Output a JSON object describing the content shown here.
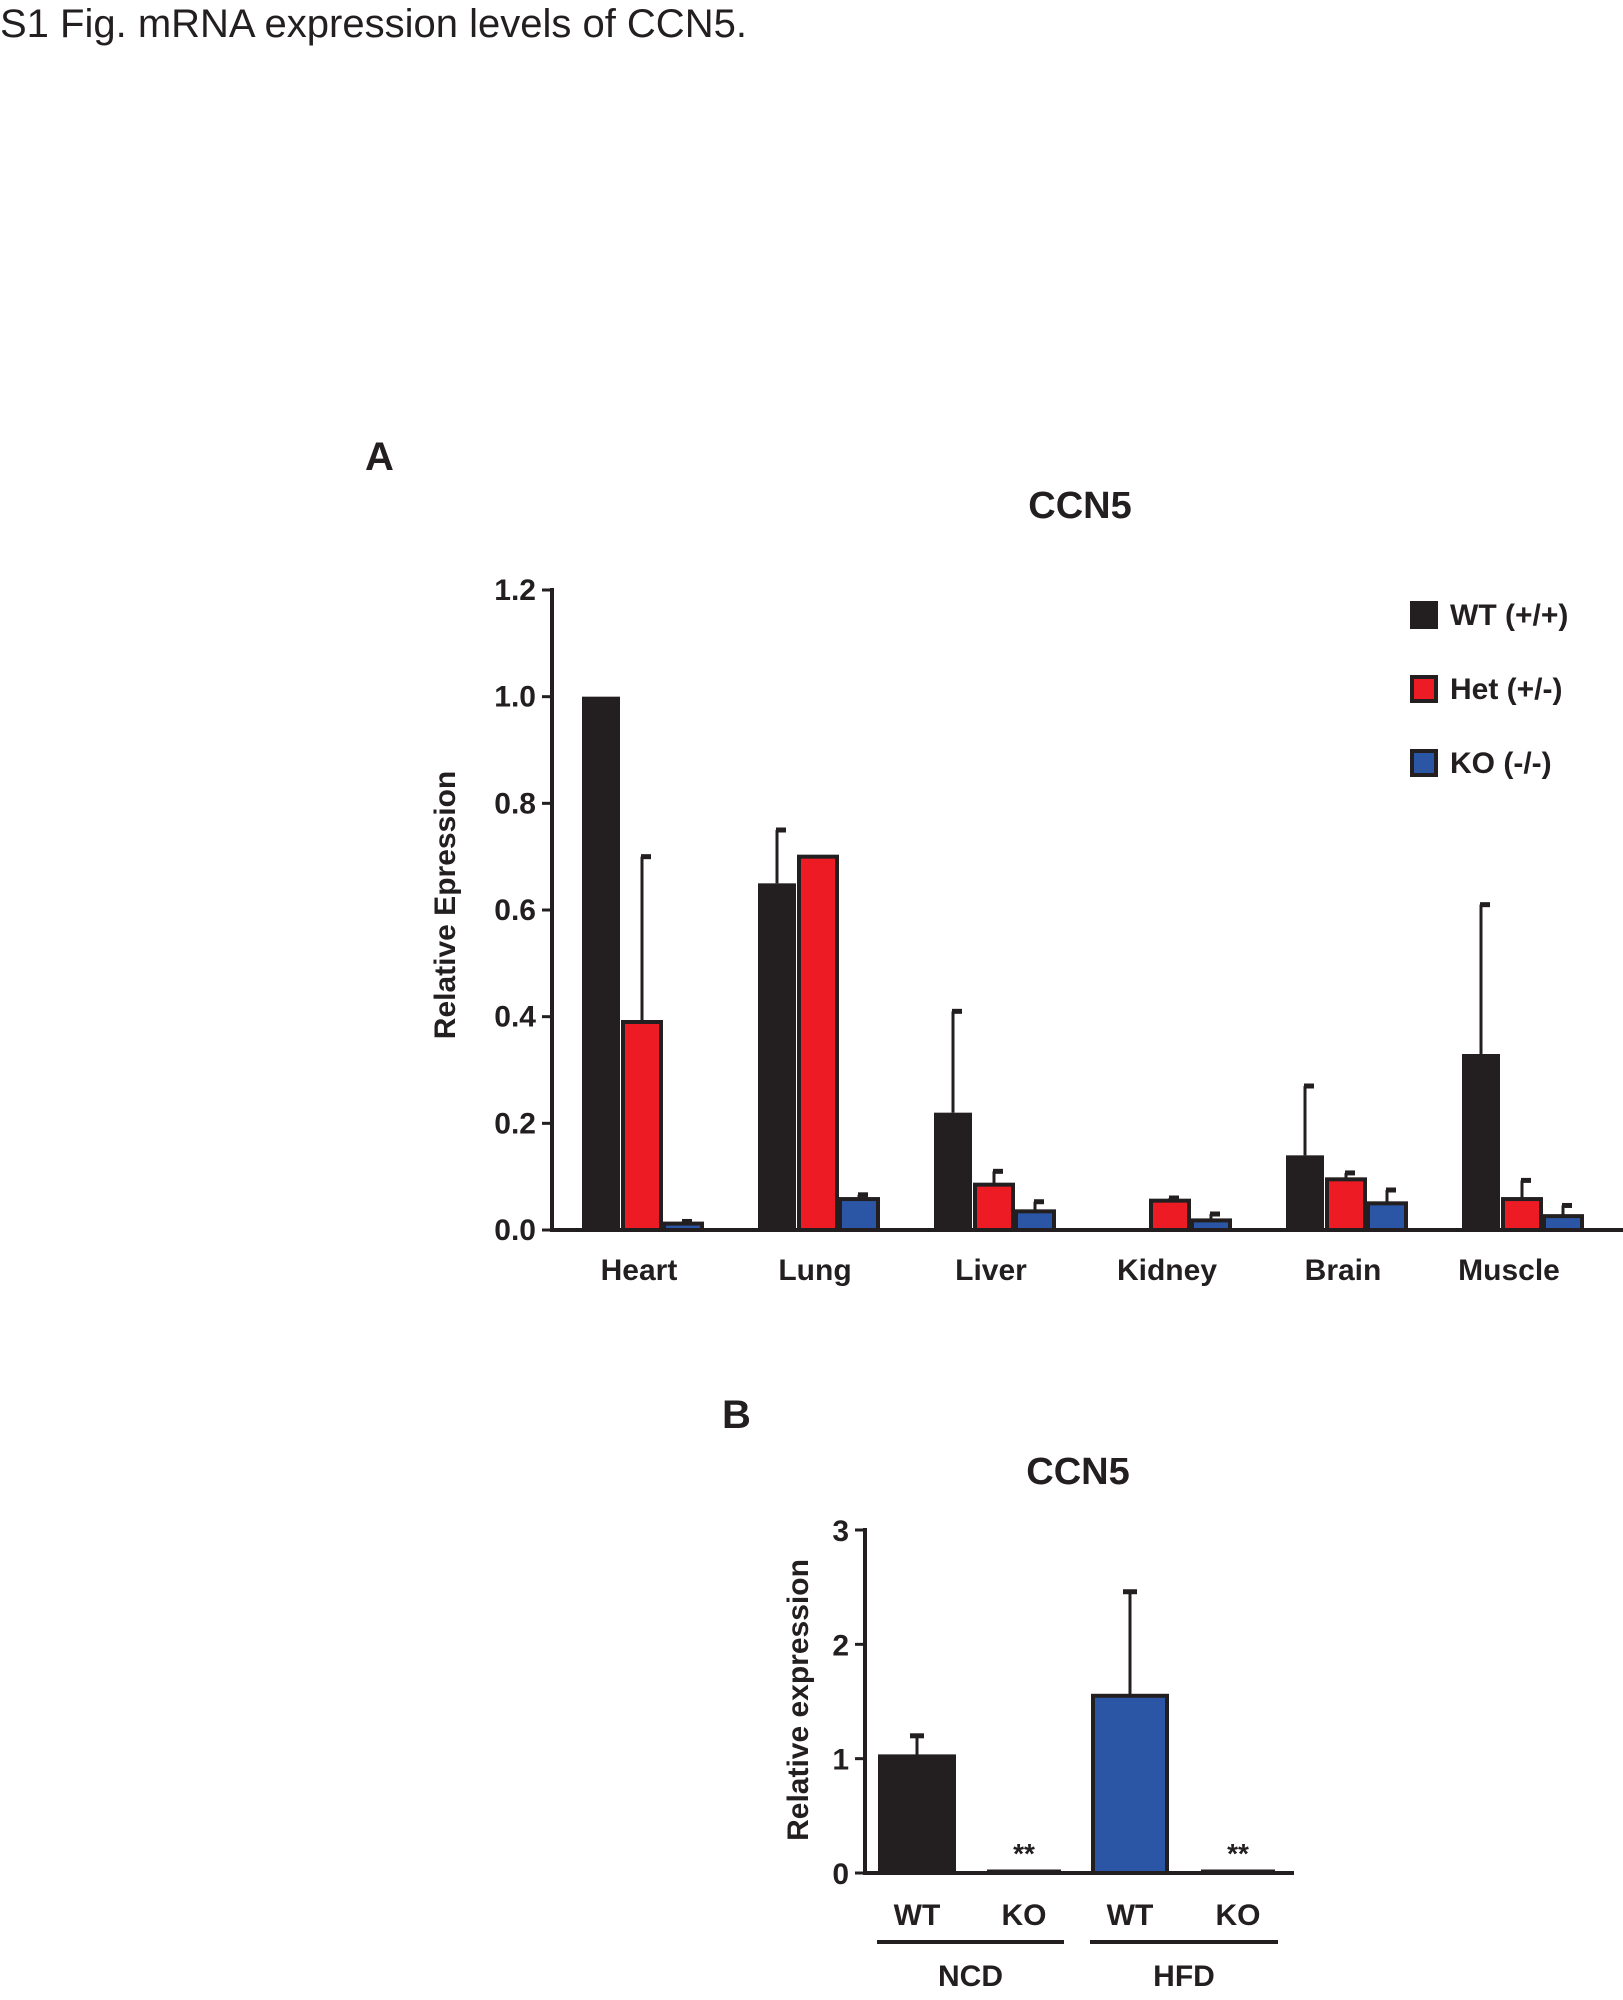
{
  "caption": "S1 Fig. mRNA expression levels of CCN5.",
  "colors": {
    "wt": "#231f20",
    "het": "#ed1c24",
    "ko": "#2a56a5",
    "axis": "#231f20"
  },
  "chart_data": [
    {
      "panel": "A",
      "type": "bar",
      "title": "CCN5",
      "xlabel": "",
      "ylabel": "Relative Epression",
      "ylim": [
        0,
        1.2
      ],
      "yticks": [
        "0.0",
        "0.2",
        "0.4",
        "0.6",
        "0.8",
        "1.0",
        "1.2"
      ],
      "legend_position": "top-right",
      "categories": [
        "Heart",
        "Lung",
        "Liver",
        "Kidney",
        "Brain",
        "Muscle"
      ],
      "series": [
        {
          "name": "WT (+/+)",
          "color_key": "wt",
          "values": [
            1.0,
            0.65,
            0.22,
            0.0,
            0.14,
            0.33
          ],
          "errors": [
            0.0,
            0.1,
            0.19,
            0.0,
            0.13,
            0.28
          ]
        },
        {
          "name": "Het (+/-)",
          "color_key": "het",
          "values": [
            0.39,
            0.7,
            0.085,
            0.055,
            0.095,
            0.058
          ],
          "errors": [
            0.31,
            0.0,
            0.025,
            0.005,
            0.012,
            0.035
          ]
        },
        {
          "name": "KO (-/-)",
          "color_key": "ko",
          "values": [
            0.012,
            0.058,
            0.035,
            0.018,
            0.05,
            0.026
          ],
          "errors": [
            0.004,
            0.008,
            0.018,
            0.012,
            0.025,
            0.02
          ]
        }
      ]
    },
    {
      "panel": "B",
      "type": "bar",
      "title": "CCN5",
      "xlabel": "",
      "ylabel": "Relative expression",
      "ylim": [
        0,
        3
      ],
      "yticks": [
        "0",
        "1",
        "2",
        "3"
      ],
      "categories": [
        "WT",
        "KO",
        "WT",
        "KO"
      ],
      "groups": [
        {
          "label": "NCD",
          "members": [
            0,
            1
          ]
        },
        {
          "label": "HFD",
          "members": [
            2,
            3
          ]
        }
      ],
      "values": [
        1.02,
        0.0,
        1.55,
        0.0
      ],
      "errors": [
        0.18,
        0.0,
        0.91,
        0.0
      ],
      "bar_color_keys": [
        "wt",
        "wt",
        "ko",
        "ko"
      ],
      "annotations": [
        "",
        "**",
        "",
        "**"
      ]
    }
  ]
}
